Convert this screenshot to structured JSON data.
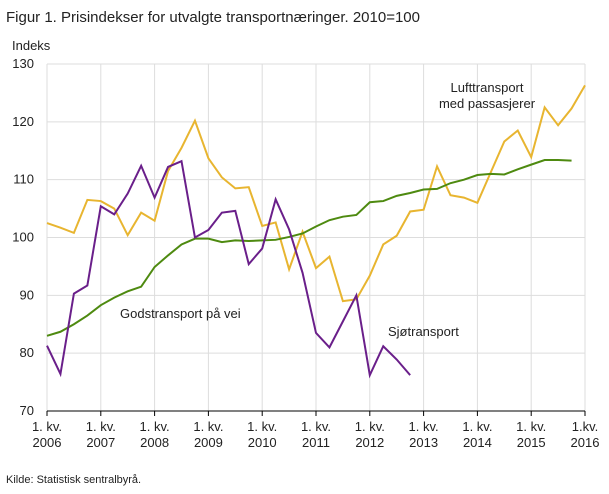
{
  "chart_data": {
    "type": "line",
    "title": "Figur 1. Prisindekser for utvalgte transportnæringer. 2010=100",
    "y_label": "Indeks",
    "source": "Kilde: Statistisk sentralbyrå.",
    "annotations": [
      "Lufttransport",
      "med passasjerer",
      "Godstransport  på vei",
      "Sjøtransport"
    ],
    "categories": [
      "1. kv. 2006",
      null,
      null,
      null,
      "1. kv. 2007",
      null,
      null,
      null,
      "1. kv. 2008",
      null,
      null,
      null,
      "1. kv. 2009",
      null,
      null,
      null,
      "1. kv. 2010",
      null,
      null,
      null,
      "1. kv. 2011",
      null,
      null,
      null,
      "1. kv. 2012",
      null,
      null,
      null,
      "1. kv. 2013",
      null,
      null,
      null,
      "1. kv. 2014",
      null,
      null,
      null,
      "1. kv. 2015",
      null,
      null,
      null,
      "1.kv. 2016"
    ],
    "series": [
      {
        "name": "Lufttransport med passasjerer",
        "color": "#e8b530",
        "values": [
          102.5,
          101.7,
          100.8,
          106.5,
          106.3,
          105,
          100.4,
          104.3,
          102.9,
          111.5,
          115.5,
          120.2,
          113.7,
          110.4,
          108.5,
          108.7,
          102,
          102.6,
          94.5,
          101,
          94.7,
          96.7,
          89,
          89.3,
          93.4,
          98.8,
          100.3,
          104.5,
          104.8,
          112.3,
          107.3,
          106.9,
          106,
          111.3,
          116.6,
          118.5,
          113.9,
          122.5,
          119.4,
          122.3,
          126.3
        ]
      },
      {
        "name": "Godstransport på vei",
        "color": "#4e8a10",
        "values": [
          83,
          83.7,
          85,
          86.5,
          88.3,
          89.6,
          90.7,
          91.5,
          94.9,
          96.9,
          98.8,
          99.8,
          99.8,
          99.2,
          99.5,
          99.4,
          99.5,
          99.6,
          100.1,
          100.7,
          101.9,
          103,
          103.6,
          103.9,
          106.1,
          106.3,
          107.2,
          107.7,
          108.3,
          108.4,
          109.4,
          110,
          110.8,
          111,
          110.9,
          111.8,
          112.6,
          113.4,
          113.4,
          113.3,
          null
        ]
      },
      {
        "name": "Sjøtransport",
        "color": "#6a1f8a",
        "values": [
          81.3,
          76.4,
          90.3,
          91.7,
          105.4,
          104,
          107.6,
          112.4,
          106.9,
          112.2,
          113.2,
          100,
          101.3,
          104.3,
          104.6,
          95.4,
          98.1,
          106.6,
          101.4,
          93.9,
          83.5,
          81,
          85.5,
          90,
          76.2,
          81.2,
          78.9,
          76.2,
          null,
          null,
          null,
          null,
          null,
          null,
          null,
          null,
          null,
          null,
          null,
          null,
          null
        ]
      }
    ],
    "ylim": [
      70,
      130
    ],
    "yticks": [
      70,
      80,
      90,
      100,
      110,
      120,
      130
    ],
    "grid": true
  }
}
